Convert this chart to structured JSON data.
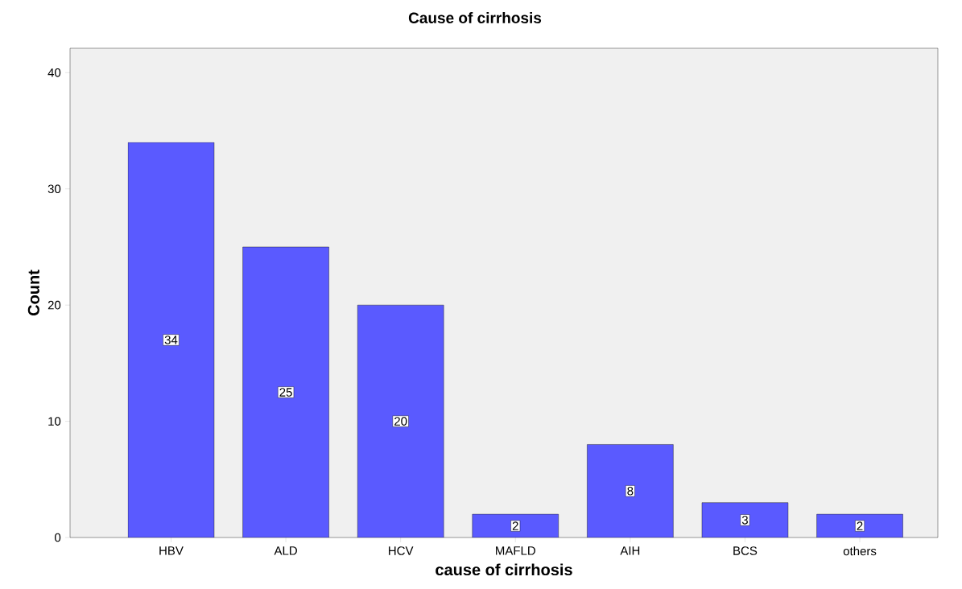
{
  "chart_data": {
    "type": "bar",
    "title": "Cause of cirrhosis",
    "xlabel": "cause of cirrhosis",
    "ylabel": "Count",
    "categories": [
      "HBV",
      "ALD",
      "HCV",
      "MAFLD",
      "AIH",
      "BCS",
      "others"
    ],
    "values": [
      34,
      25,
      20,
      2,
      8,
      3,
      2
    ],
    "color": "#5a5aff",
    "ylim": [
      0,
      42.1
    ],
    "yticks": [
      0,
      10,
      20,
      30,
      40
    ],
    "data_labels": true,
    "grid": false
  }
}
